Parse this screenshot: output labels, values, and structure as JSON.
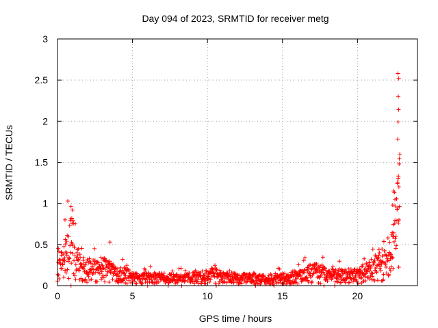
{
  "chart_data": {
    "type": "scatter",
    "title": "Day 094 of 2023, SRMTID for receiver metg",
    "xlabel": "GPS time / hours",
    "ylabel": "SRMTID / TECUs",
    "xlim": [
      0,
      24
    ],
    "ylim": [
      0,
      3
    ],
    "xticks": [
      0,
      5,
      10,
      15,
      20
    ],
    "xtick_labels": [
      "0",
      "5",
      "10",
      "15",
      "20"
    ],
    "yticks": [
      0,
      0.5,
      1,
      1.5,
      2,
      2.5,
      3
    ],
    "ytick_labels": [
      "0",
      "0.5",
      "1",
      "1.5",
      "2",
      "2.5",
      "3"
    ],
    "grid": true,
    "marker": "+",
    "color": "#ff0000",
    "series": [
      {
        "name": "SRMTID",
        "envelope": {
          "x": [
            0,
            0.3,
            0.6,
            0.9,
            1.0,
            1.2,
            1.5,
            2.0,
            2.5,
            3.0,
            3.5,
            4.0,
            4.5,
            5.0,
            6.0,
            7.0,
            8.0,
            9.0,
            10.0,
            10.5,
            11.0,
            12.0,
            13.0,
            14.0,
            15.0,
            16.0,
            16.5,
            17.0,
            18.0,
            19.0,
            20.0,
            20.5,
            21.0,
            21.5,
            22.0,
            22.3,
            22.6,
            22.8
          ],
          "y": [
            0.45,
            0.35,
            0.55,
            0.75,
            0.9,
            0.45,
            0.3,
            0.3,
            0.27,
            0.3,
            0.26,
            0.18,
            0.2,
            0.13,
            0.14,
            0.13,
            0.12,
            0.14,
            0.16,
            0.2,
            0.14,
            0.13,
            0.12,
            0.12,
            0.13,
            0.15,
            0.22,
            0.25,
            0.2,
            0.17,
            0.18,
            0.22,
            0.3,
            0.35,
            0.4,
            0.55,
            0.9,
            1.4
          ]
        },
        "outliers": [
          {
            "x": 0.9,
            "y": 0.96
          },
          {
            "x": 1.0,
            "y": 0.92
          },
          {
            "x": 0.5,
            "y": 0.8
          },
          {
            "x": 3.5,
            "y": 0.53
          },
          {
            "x": 22.7,
            "y": 2.58
          },
          {
            "x": 22.75,
            "y": 2.52
          },
          {
            "x": 22.72,
            "y": 2.3
          },
          {
            "x": 22.74,
            "y": 2.14
          },
          {
            "x": 22.71,
            "y": 1.99
          },
          {
            "x": 22.68,
            "y": 1.78
          },
          {
            "x": 22.82,
            "y": 1.6
          },
          {
            "x": 22.78,
            "y": 1.48
          },
          {
            "x": 22.73,
            "y": 1.33
          },
          {
            "x": 22.76,
            "y": 1.2
          },
          {
            "x": 22.4,
            "y": 1.15
          },
          {
            "x": 22.5,
            "y": 1.05
          },
          {
            "x": 22.35,
            "y": 0.98
          },
          {
            "x": 22.8,
            "y": 0.96
          }
        ]
      }
    ]
  }
}
